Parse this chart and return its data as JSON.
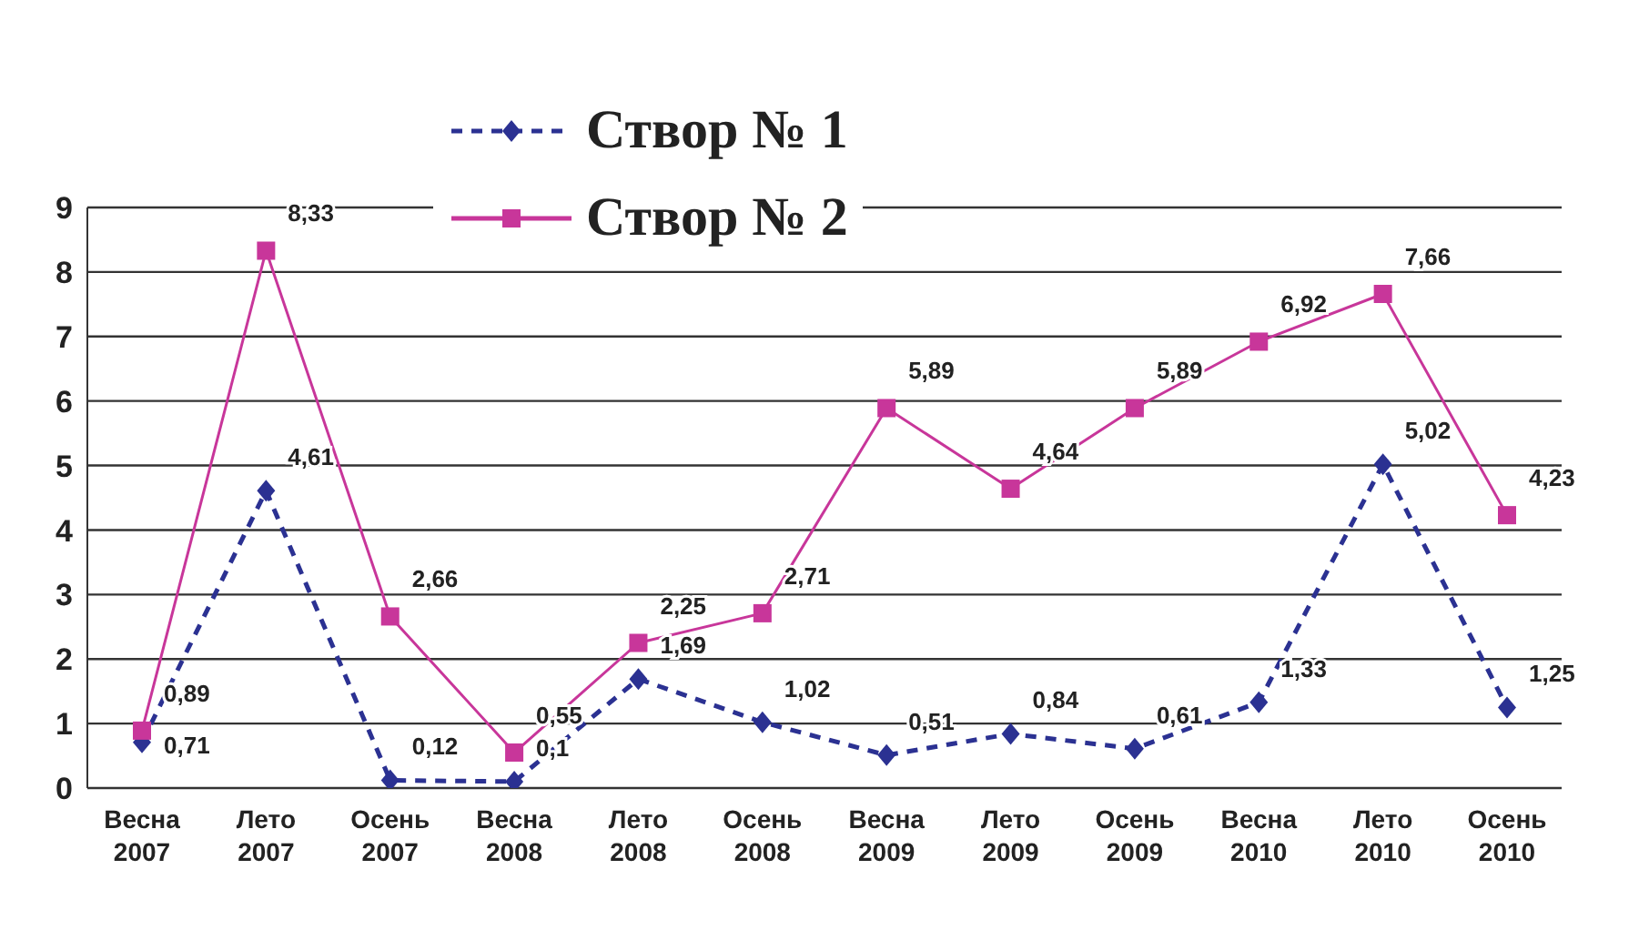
{
  "chart_data": {
    "type": "line",
    "categories": [
      "Весна\n2007",
      "Лето\n2007",
      "Осень\n2007",
      "Весна\n2008",
      "Лето\n2008",
      "Осень\n2008",
      "Весна\n2009",
      "Лето\n2009",
      "Осень\n2009",
      "Весна\n2010",
      "Лето\n2010",
      "Осень\n2010"
    ],
    "series": [
      {
        "name": "Створ № 1",
        "color": "#2b3192",
        "marker": "diamond",
        "line_style": "dashed",
        "values": [
          0.71,
          4.61,
          0.12,
          0.1,
          1.69,
          1.02,
          0.51,
          0.84,
          0.61,
          1.33,
          5.02,
          1.25
        ],
        "value_labels": [
          "0,71",
          "4,61",
          "0,12",
          "0,1",
          "1,69",
          "1,02",
          "0,51",
          "0,84",
          "0,61",
          "1,33",
          "5,02",
          "1,25"
        ]
      },
      {
        "name": "Створ № 2",
        "color": "#c8369a",
        "marker": "square",
        "line_style": "solid",
        "values": [
          0.89,
          8.33,
          2.66,
          0.55,
          2.25,
          2.71,
          5.89,
          4.64,
          5.89,
          6.92,
          7.66,
          4.23
        ],
        "value_labels": [
          "0,89",
          "8,33",
          "2,66",
          "0,55",
          "2,25",
          "2,71",
          "5,89",
          "4,64",
          "5,89",
          "6,92",
          "7,66",
          "4,23"
        ]
      }
    ],
    "ylim": [
      0,
      9
    ],
    "yticks": [
      0,
      1,
      2,
      3,
      4,
      5,
      6,
      7,
      8,
      9
    ],
    "grid": "y",
    "legend": "top"
  }
}
